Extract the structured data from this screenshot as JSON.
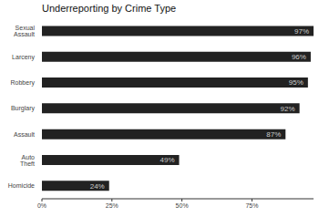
{
  "chart_data": {
    "type": "bar",
    "title": "Underreporting by Crime Type",
    "orientation": "horizontal",
    "categories": [
      "Sexual Assault",
      "Larceny",
      "Robbery",
      "Burglary",
      "Assault",
      "Auto Theft",
      "Homicide"
    ],
    "values": [
      97,
      96,
      95,
      92,
      87,
      49,
      24
    ],
    "value_labels": [
      "97%",
      "96%",
      "95%",
      "92%",
      "87%",
      "49%",
      "24%"
    ],
    "data_labels": true,
    "color": "#222222",
    "xlim": [
      0,
      97
    ],
    "xticks": [
      {
        "value": 0,
        "label": "0%"
      },
      {
        "value": 25,
        "label": "25%"
      },
      {
        "value": 50,
        "label": "50%"
      },
      {
        "value": 75,
        "label": "75%"
      }
    ],
    "grid": false
  }
}
